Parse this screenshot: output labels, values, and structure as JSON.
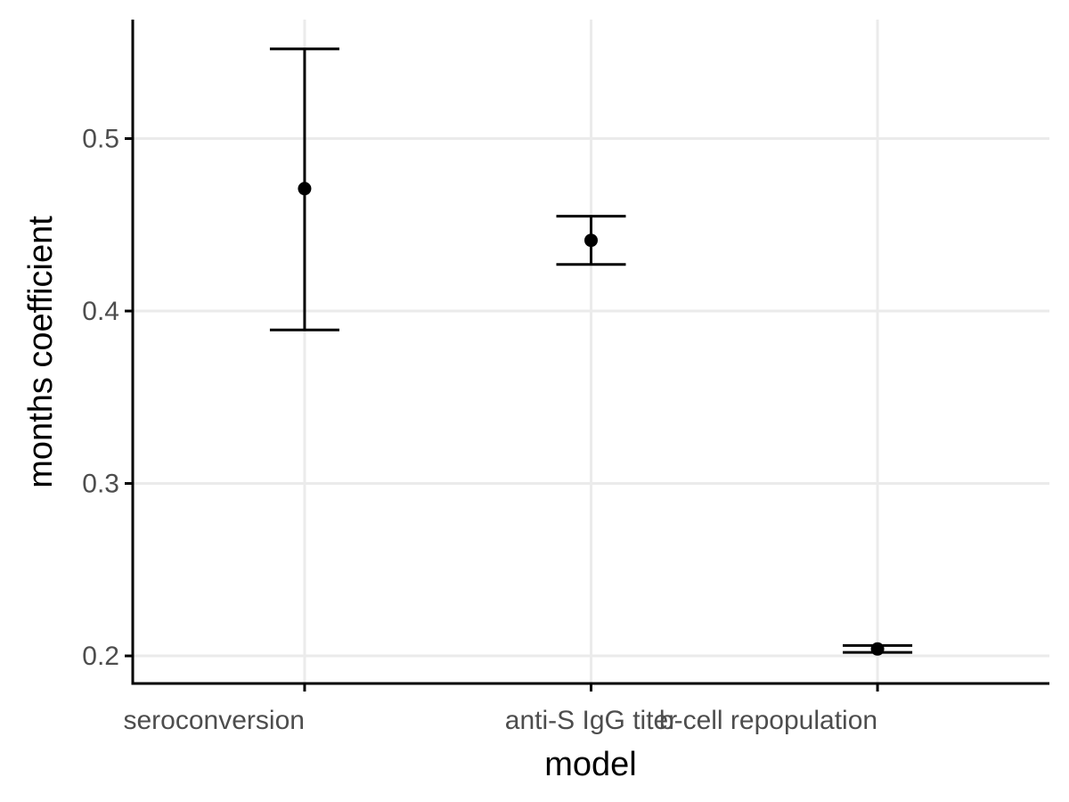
{
  "chart_data": {
    "type": "scatter",
    "subtype": "point-with-error-bars",
    "title": "",
    "xlabel": "model",
    "ylabel": "months coefficient",
    "categories": [
      "seroconversion",
      "anti-S IgG titer",
      "b-cell repopulation"
    ],
    "estimate": [
      0.471,
      0.441,
      0.204
    ],
    "lower": [
      0.389,
      0.427,
      0.202
    ],
    "upper": [
      0.552,
      0.455,
      0.206
    ],
    "ylim": [
      0.184,
      0.569
    ],
    "yticks": [
      0.2,
      0.3,
      0.4,
      0.5
    ],
    "ytick_labels": [
      "0.2",
      "0.3",
      "0.4",
      "0.5"
    ],
    "grid": true,
    "legend": "none",
    "colors": {
      "points": "#000000",
      "grid": "#ebebeb",
      "axis": "#000000",
      "tick_text": "#4d4d4d"
    }
  }
}
